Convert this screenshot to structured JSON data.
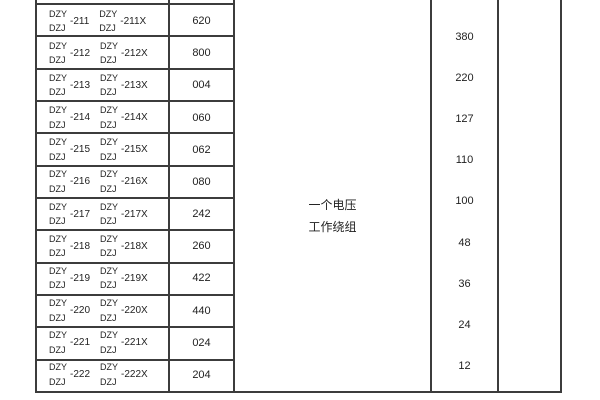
{
  "document": {
    "model_rows": [
      {
        "prefix_top": "DZY",
        "prefix_bottom": "DZJ",
        "suffix": "-211",
        "suffix_x": "-211X",
        "value": "620"
      },
      {
        "prefix_top": "DZY",
        "prefix_bottom": "DZJ",
        "suffix": "-212",
        "suffix_x": "-212X",
        "value": "800"
      },
      {
        "prefix_top": "DZY",
        "prefix_bottom": "DZJ",
        "suffix": "-213",
        "suffix_x": "-213X",
        "value": "004"
      },
      {
        "prefix_top": "DZY",
        "prefix_bottom": "DZJ",
        "suffix": "-214",
        "suffix_x": "-214X",
        "value": "060"
      },
      {
        "prefix_top": "DZY",
        "prefix_bottom": "DZJ",
        "suffix": "-215",
        "suffix_x": "-215X",
        "value": "062"
      },
      {
        "prefix_top": "DZY",
        "prefix_bottom": "DZJ",
        "suffix": "-216",
        "suffix_x": "-216X",
        "value": "080"
      },
      {
        "prefix_top": "DZY",
        "prefix_bottom": "DZJ",
        "suffix": "-217",
        "suffix_x": "-217X",
        "value": "242"
      },
      {
        "prefix_top": "DZY",
        "prefix_bottom": "DZJ",
        "suffix": "-218",
        "suffix_x": "-218X",
        "value": "260"
      },
      {
        "prefix_top": "DZY",
        "prefix_bottom": "DZJ",
        "suffix": "-219",
        "suffix_x": "-219X",
        "value": "422"
      },
      {
        "prefix_top": "DZY",
        "prefix_bottom": "DZJ",
        "suffix": "-220",
        "suffix_x": "-220X",
        "value": "440"
      },
      {
        "prefix_top": "DZY",
        "prefix_bottom": "DZJ",
        "suffix": "-221",
        "suffix_x": "-221X",
        "value": "024"
      },
      {
        "prefix_top": "DZY",
        "prefix_bottom": "DZJ",
        "suffix": "-222",
        "suffix_x": "-222X",
        "value": "204"
      }
    ],
    "winding_cell": {
      "line1": "一个电压",
      "line2": "工作绕组"
    },
    "voltage_values": [
      "380",
      "220",
      "127",
      "110",
      "100",
      "48",
      "36",
      "24",
      "12"
    ]
  },
  "colors": {
    "border": "#3c3c3c",
    "text": "#1f1f1f",
    "background": "#ffffff"
  }
}
